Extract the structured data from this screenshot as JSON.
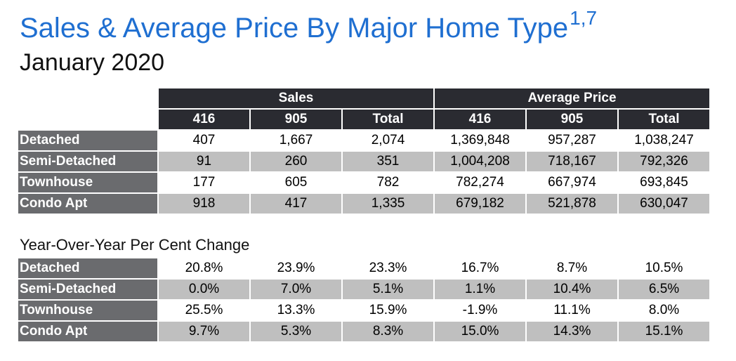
{
  "header": {
    "title": "Sales & Average Price By Major Home Type",
    "title_sup": "1,7",
    "subtitle": "January 2020"
  },
  "table1": {
    "group_headers": [
      "Sales",
      "Average Price"
    ],
    "sub_headers": [
      "416",
      "905",
      "Total",
      "416",
      "905",
      "Total"
    ],
    "rows": [
      {
        "label": "Detached",
        "values": [
          "407",
          "1,667",
          "2,074",
          "1,369,848",
          "957,287",
          "1,038,247"
        ]
      },
      {
        "label": "Semi-Detached",
        "values": [
          "91",
          "260",
          "351",
          "1,004,208",
          "718,167",
          "792,326"
        ]
      },
      {
        "label": "Townhouse",
        "values": [
          "177",
          "605",
          "782",
          "782,274",
          "667,974",
          "693,845"
        ]
      },
      {
        "label": "Condo Apt",
        "values": [
          "918",
          "417",
          "1,335",
          "679,182",
          "521,878",
          "630,047"
        ]
      }
    ]
  },
  "table2": {
    "label": "Year-Over-Year Per Cent Change",
    "rows": [
      {
        "label": "Detached",
        "values": [
          "20.8%",
          "23.9%",
          "23.3%",
          "16.7%",
          "8.7%",
          "10.5%"
        ]
      },
      {
        "label": "Semi-Detached",
        "values": [
          "0.0%",
          "7.0%",
          "5.1%",
          "1.1%",
          "10.4%",
          "6.5%"
        ]
      },
      {
        "label": "Townhouse",
        "values": [
          "25.5%",
          "13.3%",
          "15.9%",
          "-1.9%",
          "11.1%",
          "8.0%"
        ]
      },
      {
        "label": "Condo Apt",
        "values": [
          "9.7%",
          "5.3%",
          "8.3%",
          "15.0%",
          "14.3%",
          "15.1%"
        ]
      }
    ]
  },
  "colors": {
    "title": "#1f6fd1",
    "header_bg": "#2a2b31",
    "row_header_bg": "#6a6b6e",
    "stripe_bg": "#bfbfbf"
  }
}
